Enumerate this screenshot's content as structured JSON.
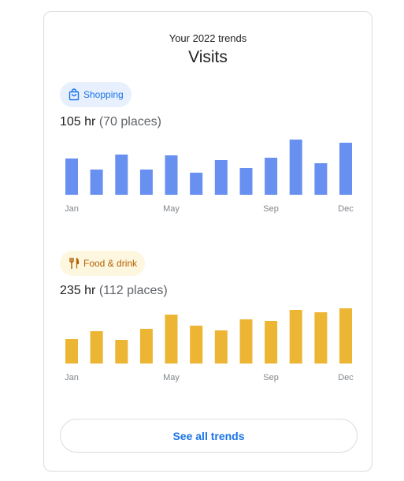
{
  "card": {
    "subtitle": "Your 2022 trends",
    "title": "Visits",
    "see_all_label": "See all trends"
  },
  "sections": [
    {
      "chip_label": "Shopping",
      "chip_icon": "shopping-bag-icon",
      "hours": "105 hr",
      "places": "(70 places)",
      "bar_color": "#6890f0"
    },
    {
      "chip_label": "Food & drink",
      "chip_icon": "restaurant-icon",
      "hours": "235 hr",
      "places": "(112 places)",
      "bar_color": "#ecb534"
    }
  ],
  "chart_data": [
    {
      "type": "bar",
      "categories": [
        "Jan",
        "Feb",
        "Mar",
        "Apr",
        "May",
        "Jun",
        "Jul",
        "Aug",
        "Sep",
        "Oct",
        "Nov",
        "Dec"
      ],
      "tick_labels": [
        "Jan",
        "May",
        "Sep",
        "Dec"
      ],
      "series": [
        {
          "values": [
            46,
            32,
            51,
            32,
            50,
            28,
            44,
            34,
            47,
            70,
            40,
            66
          ]
        }
      ],
      "ylim": [
        0,
        70
      ]
    },
    {
      "type": "bar",
      "categories": [
        "Jan",
        "Feb",
        "Mar",
        "Apr",
        "May",
        "Jun",
        "Jul",
        "Aug",
        "Sep",
        "Oct",
        "Nov",
        "Dec"
      ],
      "tick_labels": [
        "Jan",
        "May",
        "Sep",
        "Dec"
      ],
      "series": [
        {
          "values": [
            31,
            41,
            30,
            44,
            62,
            48,
            42,
            56,
            54,
            68,
            65,
            70
          ]
        }
      ],
      "ylim": [
        0,
        70
      ]
    }
  ]
}
